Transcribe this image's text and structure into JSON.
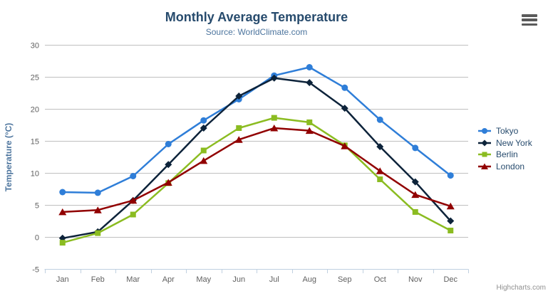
{
  "chart": {
    "title": "Monthly Average Temperature",
    "subtitle": "Source: WorldClimate.com",
    "credit": "Highcharts.com"
  },
  "icons": {
    "export_menu": "hamburger"
  },
  "colors": {
    "title": "#274b6d",
    "subtitle": "#4d759e",
    "axis_title": "#4d759e",
    "tick_label": "#606060",
    "gridline": "#c0c0c0",
    "axis_line": "#c0d0e0",
    "legend_text": "#274b6d",
    "credit_text": "#909090",
    "background": "#ffffff"
  },
  "chart_data": {
    "type": "line",
    "title": "Monthly Average Temperature",
    "subtitle": "Source: WorldClimate.com",
    "xlabel": "",
    "ylabel": "Temperature (°C)",
    "categories": [
      "Jan",
      "Feb",
      "Mar",
      "Apr",
      "May",
      "Jun",
      "Jul",
      "Aug",
      "Sep",
      "Oct",
      "Nov",
      "Dec"
    ],
    "ylim": [
      -5,
      30
    ],
    "ytick_step": 5,
    "grid": true,
    "legend_position": "right",
    "grid_color": "#c0c0c0",
    "axis_line_color": "#c0d0e0",
    "series": [
      {
        "name": "Tokyo",
        "color": "#2f7ed8",
        "marker": "circle",
        "values": [
          7.0,
          6.9,
          9.5,
          14.5,
          18.2,
          21.5,
          25.2,
          26.5,
          23.3,
          18.3,
          13.9,
          9.6
        ]
      },
      {
        "name": "New York",
        "color": "#0d233a",
        "marker": "diamond",
        "values": [
          -0.2,
          0.8,
          5.7,
          11.3,
          17.0,
          22.0,
          24.8,
          24.1,
          20.1,
          14.1,
          8.6,
          2.5
        ]
      },
      {
        "name": "Berlin",
        "color": "#8bbc21",
        "marker": "square",
        "values": [
          -0.9,
          0.6,
          3.5,
          8.4,
          13.5,
          17.0,
          18.6,
          17.9,
          14.3,
          9.0,
          3.9,
          1.0
        ]
      },
      {
        "name": "London",
        "color": "#910000",
        "marker": "triangle",
        "values": [
          3.9,
          4.2,
          5.7,
          8.5,
          11.9,
          15.2,
          17.0,
          16.6,
          14.2,
          10.3,
          6.6,
          4.8
        ]
      }
    ]
  }
}
